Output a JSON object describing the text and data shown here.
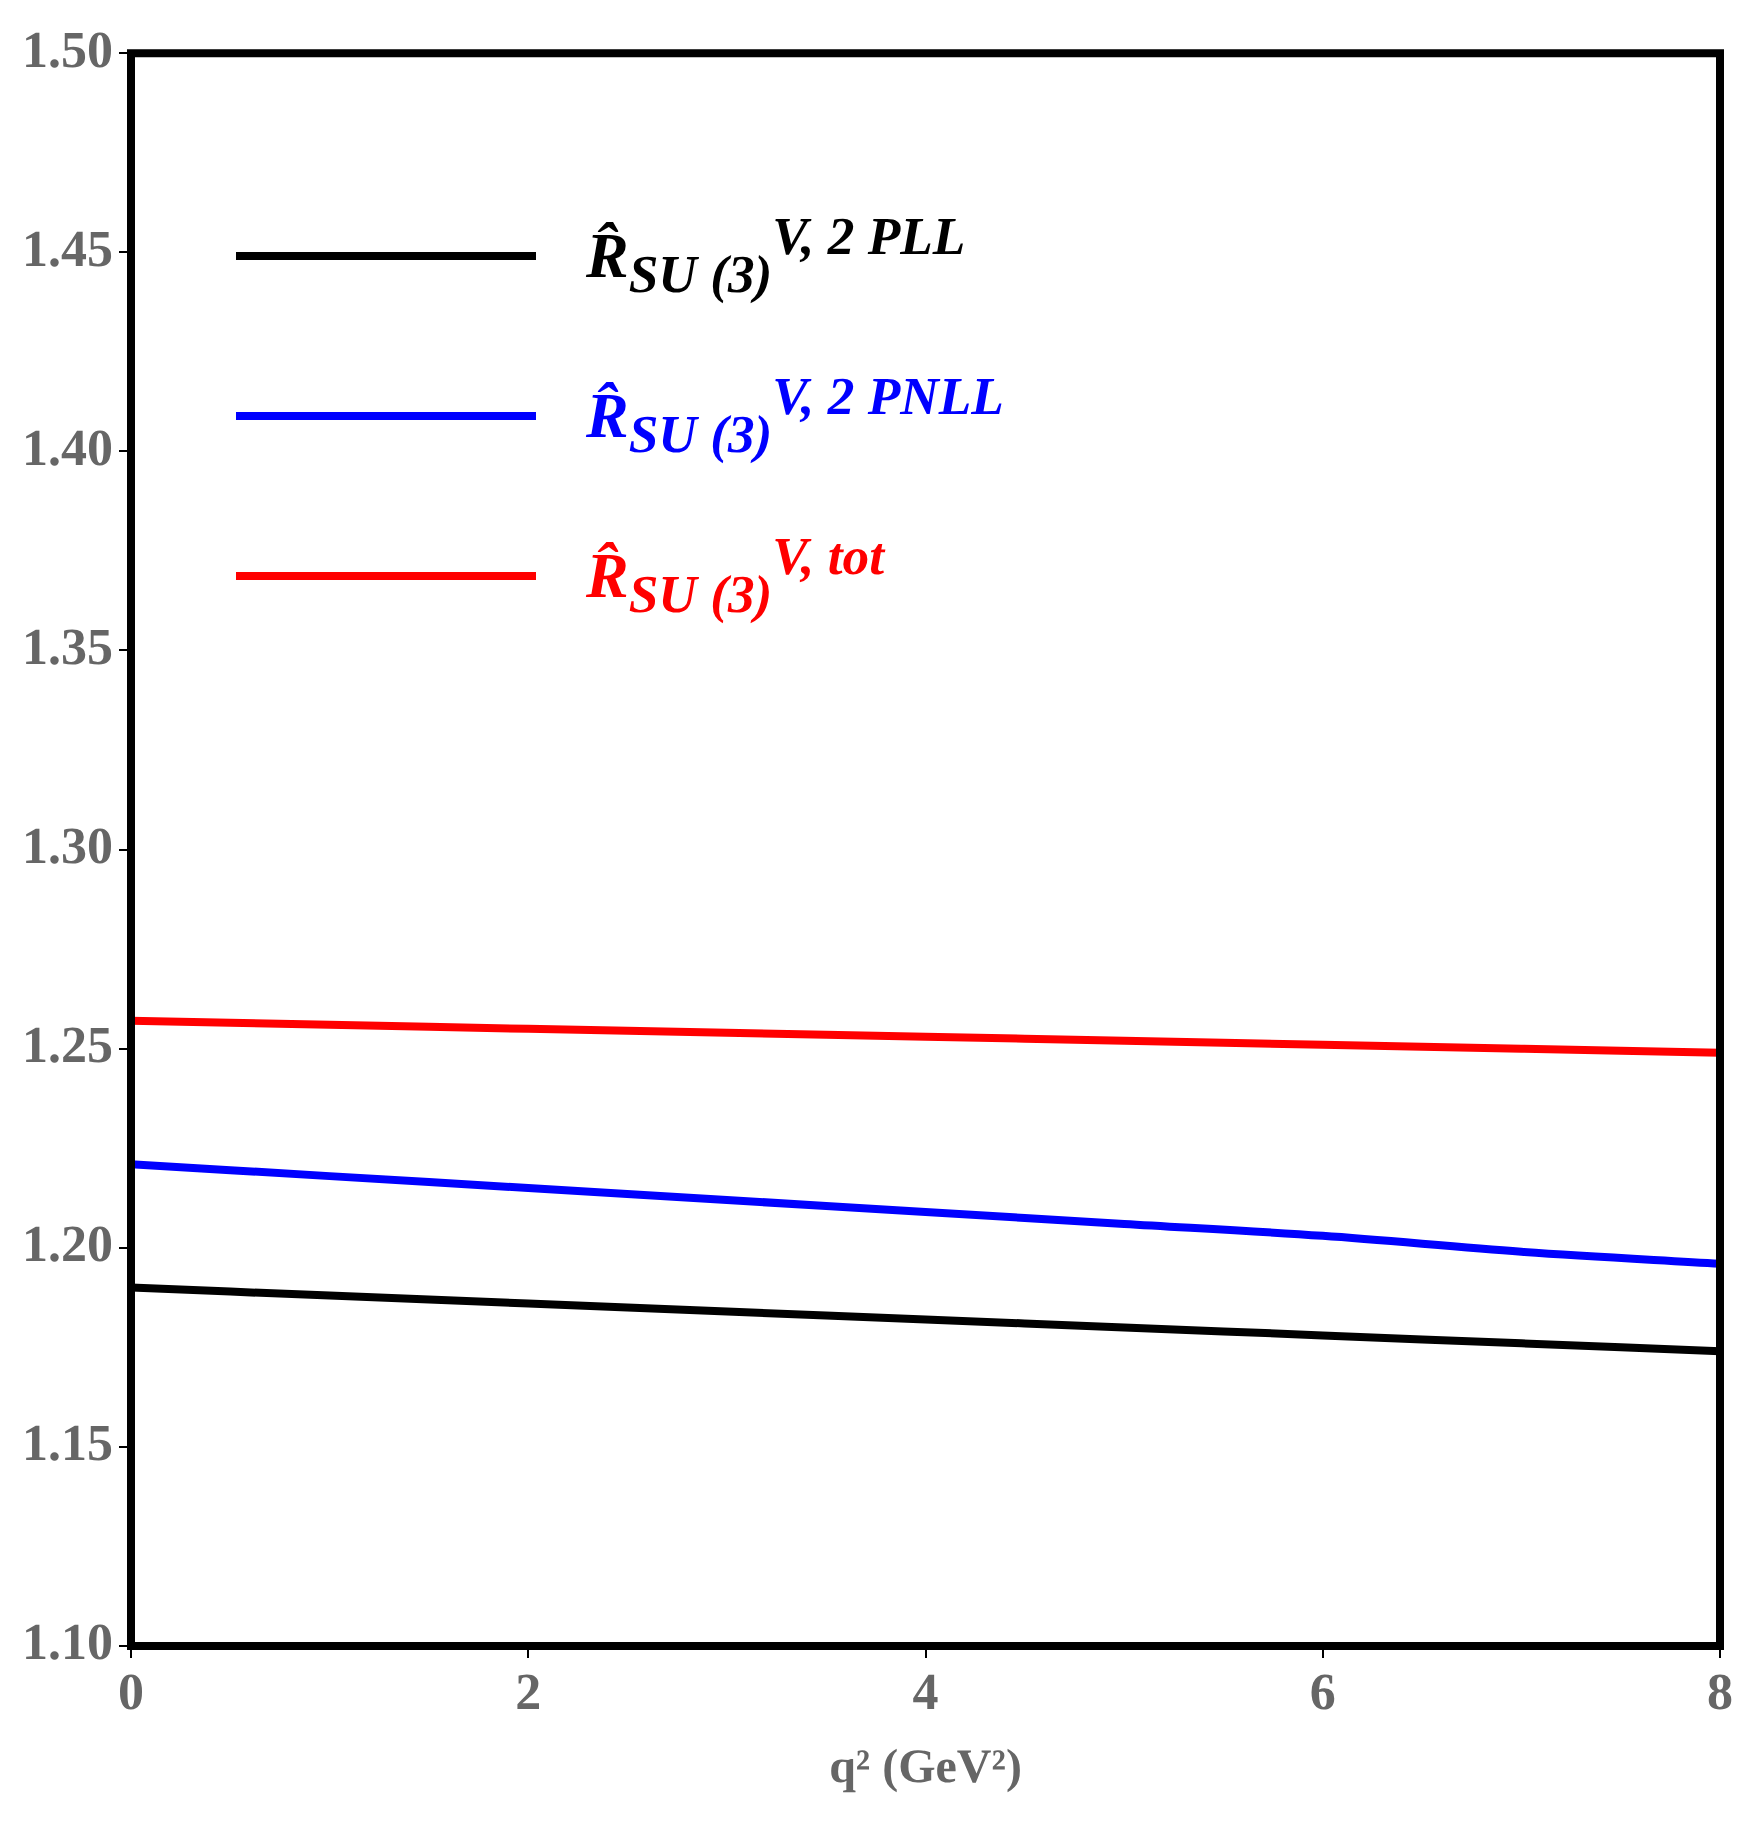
{
  "chart_data": {
    "type": "line",
    "xlabel": "q² (GeV²)",
    "x": [
      0,
      1,
      2,
      3,
      4,
      5,
      6,
      7,
      8
    ],
    "series": [
      {
        "name": "R̂$_{SU (3)}$$^{V, 2 PLL}$",
        "color": "#000000",
        "values": [
          1.19,
          1.188,
          1.186,
          1.184,
          1.182,
          1.18,
          1.178,
          1.176,
          1.174
        ]
      },
      {
        "name": "R̂$_{SU (3)}$$^{V, 2 PNLL}$",
        "color": "#0000ff",
        "values": [
          1.221,
          1.218,
          1.215,
          1.212,
          1.209,
          1.206,
          1.203,
          1.199,
          1.196
        ]
      },
      {
        "name": "R̂$_{SU (3)}$$^{V, tot}$",
        "color": "#ff0000",
        "values": [
          1.257,
          1.256,
          1.255,
          1.254,
          1.253,
          1.252,
          1.251,
          1.25,
          1.249
        ]
      }
    ],
    "xlim": [
      0,
      8
    ],
    "xticks": [
      0,
      2,
      4,
      6,
      8
    ],
    "ylim": [
      1.1,
      1.5
    ],
    "yticks": [
      {
        "value": 1.1,
        "label": "1.10"
      },
      {
        "value": 1.15,
        "label": "1.15"
      },
      {
        "value": 1.2,
        "label": "1.20"
      },
      {
        "value": 1.25,
        "label": "1.25"
      },
      {
        "value": 1.3,
        "label": "1.30"
      },
      {
        "value": 1.35,
        "label": "1.35"
      },
      {
        "value": 1.4,
        "label": "1.40"
      },
      {
        "value": 1.45,
        "label": "1.45"
      },
      {
        "value": 1.5,
        "label": "1.50"
      }
    ],
    "grid": false,
    "legend": "top left",
    "marker": "none",
    "line_style": "solid"
  }
}
